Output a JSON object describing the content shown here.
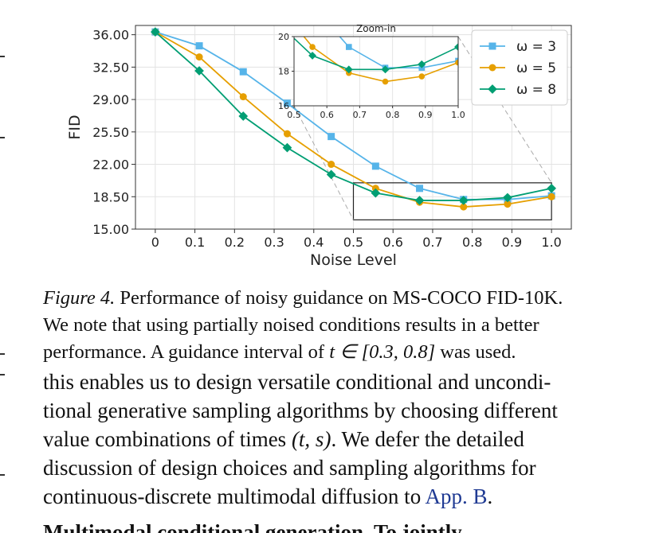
{
  "figure": {
    "caption_label": "Figure 4.",
    "caption_line1": "Performance of noisy guidance on MS-COCO FID-10K.",
    "caption_line2": "We note that using partially noised conditions results in a better",
    "caption_line3_pre": "performance. A guidance interval of ",
    "caption_math": "t ∈ [0.3, 0.8]",
    "caption_line3_post": " was used."
  },
  "body": {
    "line1": "this enables us to design versatile conditional and uncondi-",
    "line2": "tional generative sampling algorithms by choosing different",
    "line3_pre": "value combinations of times ",
    "line3_math": "(t, s)",
    "line3_post": ". We defer the detailed",
    "line4": "discussion of design choices and sampling algorithms for",
    "line5_pre": "continuous-discrete multimodal diffusion to ",
    "line5_link": "App. B",
    "line5_post": ".",
    "cut_heading": "Multimodal conditional generation. To jointly"
  },
  "chart_data": {
    "type": "line",
    "xlabel": "Noise Level",
    "ylabel": "FID",
    "xlim": [
      -0.05,
      1.05
    ],
    "ylim": [
      15.0,
      37.0
    ],
    "xticks": [
      "0",
      "0.1",
      "0.2",
      "0.3",
      "0.4",
      "0.5",
      "0.6",
      "0.7",
      "0.8",
      "0.9",
      "1.0"
    ],
    "yticks": [
      "15.00",
      "18.50",
      "22.00",
      "25.50",
      "29.00",
      "32.50",
      "36.00"
    ],
    "grid": true,
    "legend_position": "top-right",
    "x": [
      0,
      0.111,
      0.222,
      0.333,
      0.444,
      0.556,
      0.667,
      0.778,
      0.889,
      1.0
    ],
    "series": [
      {
        "name": "ω = 3",
        "color": "#56b4e9",
        "marker": "square",
        "values": [
          36.3,
          34.8,
          32.0,
          28.6,
          25.0,
          21.8,
          19.4,
          18.2,
          18.2,
          18.6
        ]
      },
      {
        "name": "ω = 5",
        "color": "#e69f00",
        "marker": "circle",
        "values": [
          36.3,
          33.6,
          29.3,
          25.3,
          22.0,
          19.4,
          17.9,
          17.4,
          17.7,
          18.5
        ]
      },
      {
        "name": "ω = 8",
        "color": "#009e73",
        "marker": "diamond",
        "values": [
          36.3,
          32.1,
          27.2,
          23.8,
          20.9,
          18.9,
          18.1,
          18.1,
          18.4,
          19.4
        ]
      }
    ],
    "inset": {
      "title": "Zoom-in",
      "xlim": [
        0.5,
        1.0
      ],
      "ylim": [
        16,
        20
      ],
      "xticks": [
        "0.5",
        "0.6",
        "0.7",
        "0.8",
        "0.9",
        "1.0"
      ],
      "yticks": [
        "16",
        "18",
        "20"
      ]
    }
  }
}
